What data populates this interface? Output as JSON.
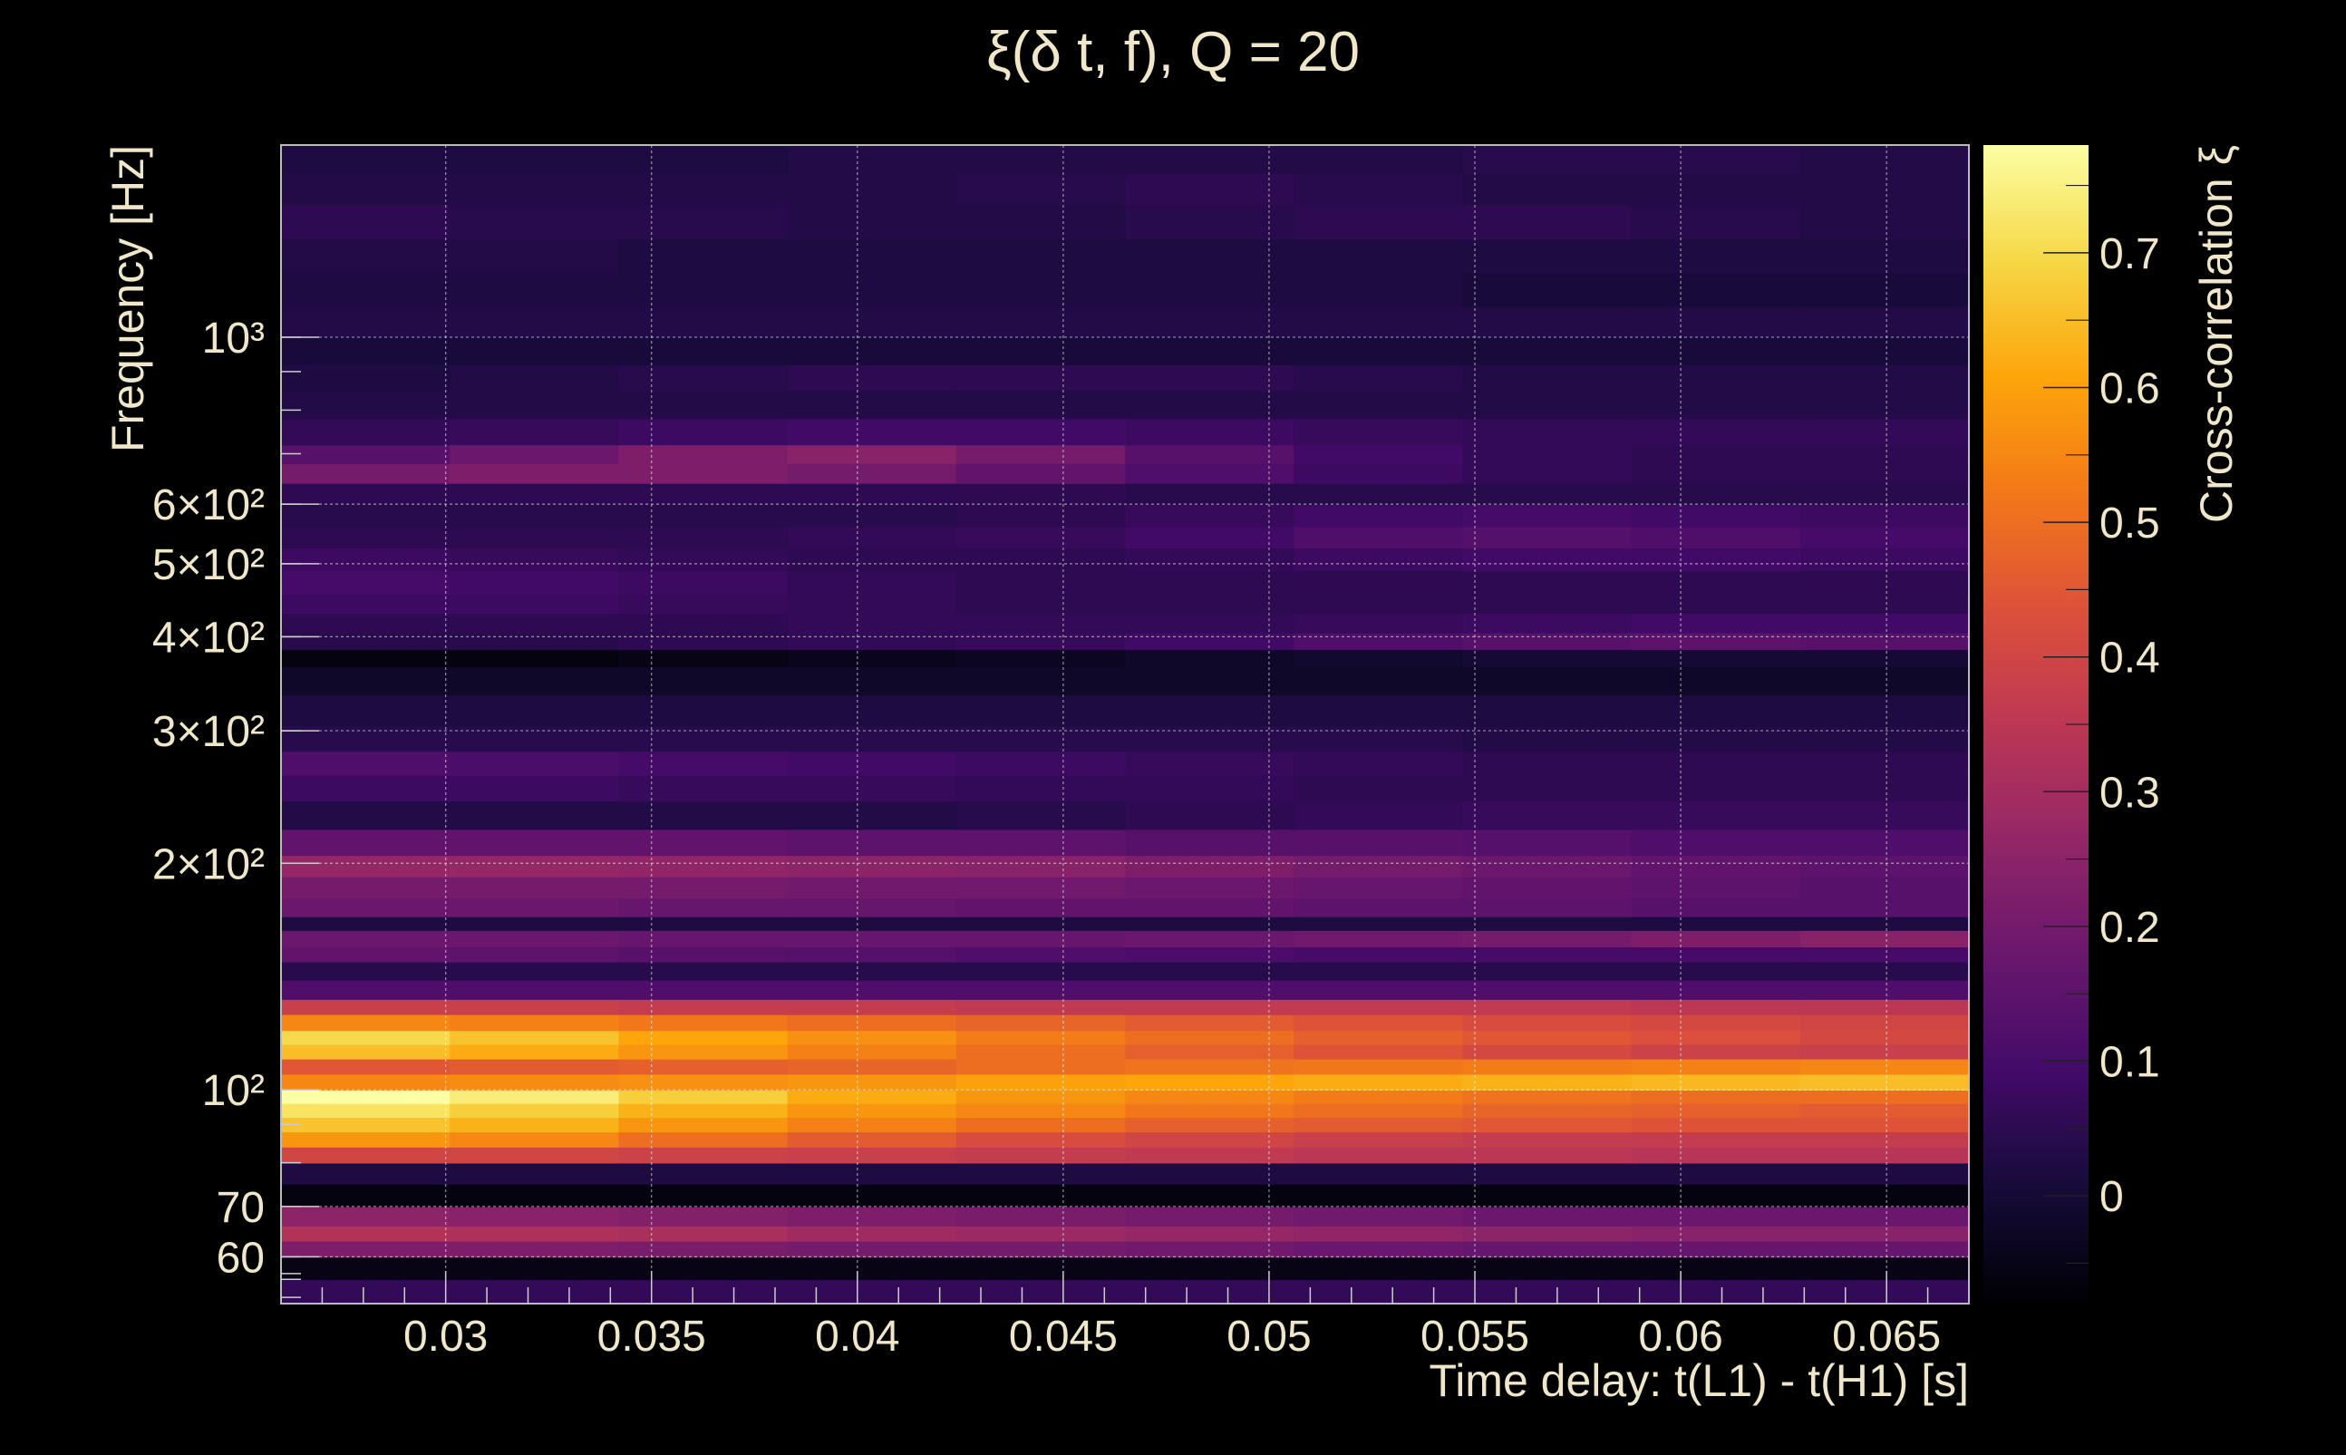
{
  "chart_data": {
    "type": "heatmap",
    "title": "ξ(δ t, f), Q = 20",
    "xlabel": "Time delay: t(L1) - t(H1) [s]",
    "ylabel": "Frequency [Hz]",
    "colorbar_label": "Cross-correlation ξ",
    "xlim": [
      0.026,
      0.067
    ],
    "ylim": [
      52,
      1800
    ],
    "y_scale": "log",
    "zlim": [
      -0.08,
      0.78
    ],
    "grid": true,
    "colormap": "inferno",
    "x_ticks": [
      {
        "value": 0.03,
        "label": "0.03"
      },
      {
        "value": 0.035,
        "label": "0.035"
      },
      {
        "value": 0.04,
        "label": "0.04"
      },
      {
        "value": 0.045,
        "label": "0.045"
      },
      {
        "value": 0.05,
        "label": "0.05"
      },
      {
        "value": 0.055,
        "label": "0.055"
      },
      {
        "value": 0.06,
        "label": "0.06"
      },
      {
        "value": 0.065,
        "label": "0.065"
      }
    ],
    "y_ticks": [
      {
        "value": 60,
        "label": "60"
      },
      {
        "value": 70,
        "label": "70"
      },
      {
        "value": 100,
        "label": "10²"
      },
      {
        "value": 200,
        "label": "2×10²"
      },
      {
        "value": 300,
        "label": "3×10²"
      },
      {
        "value": 400,
        "label": "4×10²"
      },
      {
        "value": 500,
        "label": "5×10²"
      },
      {
        "value": 600,
        "label": "6×10²"
      },
      {
        "value": 1000,
        "label": "10³"
      }
    ],
    "colorbar_ticks": [
      {
        "value": 0,
        "label": "0"
      },
      {
        "value": 0.1,
        "label": "0.1"
      },
      {
        "value": 0.2,
        "label": "0.2"
      },
      {
        "value": 0.3,
        "label": "0.3"
      },
      {
        "value": 0.4,
        "label": "0.4"
      },
      {
        "value": 0.5,
        "label": "0.5"
      },
      {
        "value": 0.6,
        "label": "0.6"
      },
      {
        "value": 0.7,
        "label": "0.7"
      }
    ],
    "x_bins": [
      0.026,
      0.0301,
      0.0342,
      0.0383,
      0.0424,
      0.0465,
      0.0506,
      0.0547,
      0.0588,
      0.0629,
      0.067
    ],
    "bands": [
      {
        "f_low": 52,
        "f_high": 56,
        "values": [
          0.06,
          0.06,
          0.06,
          0.06,
          0.06,
          0.06,
          0.06,
          0.06,
          0.06,
          0.06
        ]
      },
      {
        "f_low": 56,
        "f_high": 60,
        "values": [
          -0.05,
          -0.05,
          -0.05,
          -0.05,
          -0.05,
          -0.05,
          -0.05,
          -0.05,
          -0.05,
          -0.05
        ]
      },
      {
        "f_low": 60,
        "f_high": 63,
        "values": [
          0.22,
          0.22,
          0.21,
          0.2,
          0.2,
          0.19,
          0.18,
          0.17,
          0.17,
          0.17
        ]
      },
      {
        "f_low": 63,
        "f_high": 66,
        "values": [
          0.33,
          0.32,
          0.31,
          0.29,
          0.28,
          0.27,
          0.26,
          0.25,
          0.24,
          0.24
        ]
      },
      {
        "f_low": 66,
        "f_high": 70,
        "values": [
          0.25,
          0.24,
          0.23,
          0.22,
          0.21,
          0.2,
          0.19,
          0.18,
          0.18,
          0.18
        ]
      },
      {
        "f_low": 70,
        "f_high": 75,
        "values": [
          -0.06,
          -0.06,
          -0.06,
          -0.06,
          -0.06,
          -0.06,
          -0.06,
          -0.06,
          -0.06,
          -0.06
        ]
      },
      {
        "f_low": 75,
        "f_high": 80,
        "values": [
          0.02,
          0.02,
          0.02,
          0.02,
          0.02,
          0.02,
          0.02,
          0.02,
          0.02,
          0.02
        ]
      },
      {
        "f_low": 80,
        "f_high": 84,
        "values": [
          0.4,
          0.4,
          0.39,
          0.38,
          0.37,
          0.36,
          0.35,
          0.35,
          0.34,
          0.34
        ]
      },
      {
        "f_low": 84,
        "f_high": 88,
        "values": [
          0.58,
          0.55,
          0.5,
          0.46,
          0.42,
          0.4,
          0.38,
          0.37,
          0.37,
          0.37
        ]
      },
      {
        "f_low": 88,
        "f_high": 92,
        "values": [
          0.66,
          0.63,
          0.58,
          0.54,
          0.5,
          0.47,
          0.46,
          0.45,
          0.44,
          0.44
        ]
      },
      {
        "f_low": 92,
        "f_high": 96,
        "values": [
          0.72,
          0.68,
          0.63,
          0.58,
          0.55,
          0.52,
          0.5,
          0.48,
          0.47,
          0.46
        ]
      },
      {
        "f_low": 96,
        "f_high": 100,
        "values": [
          0.78,
          0.74,
          0.68,
          0.62,
          0.58,
          0.55,
          0.53,
          0.51,
          0.5,
          0.5
        ]
      },
      {
        "f_low": 100,
        "f_high": 105,
        "values": [
          0.55,
          0.56,
          0.57,
          0.58,
          0.6,
          0.61,
          0.62,
          0.63,
          0.64,
          0.65
        ]
      },
      {
        "f_low": 105,
        "f_high": 110,
        "values": [
          0.45,
          0.46,
          0.47,
          0.48,
          0.5,
          0.51,
          0.52,
          0.53,
          0.54,
          0.55
        ]
      },
      {
        "f_low": 110,
        "f_high": 115,
        "values": [
          0.65,
          0.62,
          0.58,
          0.54,
          0.5,
          0.47,
          0.44,
          0.41,
          0.39,
          0.38
        ]
      },
      {
        "f_low": 115,
        "f_high": 120,
        "values": [
          0.7,
          0.66,
          0.61,
          0.57,
          0.53,
          0.5,
          0.47,
          0.45,
          0.43,
          0.41
        ]
      },
      {
        "f_low": 120,
        "f_high": 126,
        "values": [
          0.55,
          0.54,
          0.52,
          0.5,
          0.48,
          0.46,
          0.44,
          0.42,
          0.41,
          0.4
        ]
      },
      {
        "f_low": 126,
        "f_high": 132,
        "values": [
          0.38,
          0.38,
          0.37,
          0.37,
          0.36,
          0.36,
          0.36,
          0.36,
          0.35,
          0.35
        ]
      },
      {
        "f_low": 132,
        "f_high": 140,
        "values": [
          0.12,
          0.12,
          0.12,
          0.12,
          0.12,
          0.12,
          0.12,
          0.12,
          0.12,
          0.12
        ]
      },
      {
        "f_low": 140,
        "f_high": 148,
        "values": [
          0.04,
          0.04,
          0.04,
          0.04,
          0.04,
          0.04,
          0.04,
          0.04,
          0.04,
          0.04
        ]
      },
      {
        "f_low": 148,
        "f_high": 155,
        "values": [
          0.16,
          0.15,
          0.14,
          0.13,
          0.12,
          0.11,
          0.1,
          0.1,
          0.1,
          0.1
        ]
      },
      {
        "f_low": 155,
        "f_high": 163,
        "values": [
          0.18,
          0.18,
          0.17,
          0.17,
          0.17,
          0.18,
          0.19,
          0.2,
          0.22,
          0.24
        ]
      },
      {
        "f_low": 163,
        "f_high": 170,
        "values": [
          0.02,
          0.02,
          0.02,
          0.02,
          0.02,
          0.02,
          0.02,
          0.02,
          0.02,
          0.02
        ]
      },
      {
        "f_low": 170,
        "f_high": 180,
        "values": [
          0.18,
          0.18,
          0.17,
          0.17,
          0.16,
          0.16,
          0.15,
          0.15,
          0.14,
          0.14
        ]
      },
      {
        "f_low": 180,
        "f_high": 192,
        "values": [
          0.2,
          0.2,
          0.2,
          0.19,
          0.19,
          0.18,
          0.17,
          0.16,
          0.15,
          0.14
        ]
      },
      {
        "f_low": 192,
        "f_high": 205,
        "values": [
          0.27,
          0.27,
          0.26,
          0.25,
          0.24,
          0.22,
          0.2,
          0.18,
          0.16,
          0.15
        ]
      },
      {
        "f_low": 205,
        "f_high": 222,
        "values": [
          0.16,
          0.16,
          0.16,
          0.15,
          0.15,
          0.14,
          0.14,
          0.13,
          0.12,
          0.12
        ]
      },
      {
        "f_low": 222,
        "f_high": 242,
        "values": [
          0.03,
          0.03,
          0.03,
          0.03,
          0.04,
          0.05,
          0.06,
          0.07,
          0.07,
          0.07
        ]
      },
      {
        "f_low": 242,
        "f_high": 262,
        "values": [
          0.08,
          0.08,
          0.07,
          0.07,
          0.06,
          0.06,
          0.05,
          0.05,
          0.05,
          0.05
        ]
      },
      {
        "f_low": 262,
        "f_high": 282,
        "values": [
          0.12,
          0.11,
          0.1,
          0.09,
          0.08,
          0.07,
          0.06,
          0.05,
          0.05,
          0.05
        ]
      },
      {
        "f_low": 282,
        "f_high": 305,
        "values": [
          0.04,
          0.04,
          0.04,
          0.04,
          0.04,
          0.04,
          0.04,
          0.03,
          0.03,
          0.03
        ]
      },
      {
        "f_low": 305,
        "f_high": 335,
        "values": [
          0.02,
          0.02,
          0.02,
          0.02,
          0.02,
          0.02,
          0.02,
          0.02,
          0.02,
          0.02
        ]
      },
      {
        "f_low": 335,
        "f_high": 365,
        "values": [
          -0.02,
          -0.02,
          -0.02,
          -0.02,
          -0.02,
          -0.02,
          -0.02,
          -0.02,
          -0.02,
          -0.02
        ]
      },
      {
        "f_low": 365,
        "f_high": 385,
        "values": [
          -0.06,
          -0.06,
          -0.05,
          -0.04,
          -0.03,
          -0.02,
          -0.01,
          0.0,
          0.0,
          0.0
        ]
      },
      {
        "f_low": 385,
        "f_high": 405,
        "values": [
          0.04,
          0.04,
          0.05,
          0.06,
          0.07,
          0.09,
          0.12,
          0.14,
          0.15,
          0.14
        ]
      },
      {
        "f_low": 405,
        "f_high": 430,
        "values": [
          0.05,
          0.05,
          0.05,
          0.06,
          0.06,
          0.06,
          0.07,
          0.08,
          0.09,
          0.09
        ]
      },
      {
        "f_low": 430,
        "f_high": 455,
        "values": [
          0.08,
          0.08,
          0.07,
          0.06,
          0.05,
          0.05,
          0.05,
          0.05,
          0.05,
          0.05
        ]
      },
      {
        "f_low": 455,
        "f_high": 490,
        "values": [
          0.1,
          0.09,
          0.08,
          0.06,
          0.05,
          0.05,
          0.05,
          0.05,
          0.05,
          0.05
        ]
      },
      {
        "f_low": 490,
        "f_high": 525,
        "values": [
          0.08,
          0.07,
          0.06,
          0.05,
          0.05,
          0.06,
          0.08,
          0.09,
          0.09,
          0.08
        ]
      },
      {
        "f_low": 525,
        "f_high": 560,
        "values": [
          0.05,
          0.05,
          0.05,
          0.06,
          0.07,
          0.09,
          0.12,
          0.13,
          0.12,
          0.1
        ]
      },
      {
        "f_low": 560,
        "f_high": 600,
        "values": [
          0.04,
          0.04,
          0.04,
          0.04,
          0.05,
          0.07,
          0.09,
          0.1,
          0.09,
          0.08
        ]
      },
      {
        "f_low": 600,
        "f_high": 640,
        "values": [
          0.05,
          0.05,
          0.05,
          0.05,
          0.05,
          0.04,
          0.04,
          0.04,
          0.04,
          0.04
        ]
      },
      {
        "f_low": 640,
        "f_high": 680,
        "values": [
          0.2,
          0.22,
          0.22,
          0.2,
          0.16,
          0.12,
          0.08,
          0.06,
          0.05,
          0.05
        ]
      },
      {
        "f_low": 680,
        "f_high": 720,
        "values": [
          0.14,
          0.18,
          0.22,
          0.24,
          0.2,
          0.14,
          0.09,
          0.06,
          0.05,
          0.05
        ]
      },
      {
        "f_low": 720,
        "f_high": 780,
        "values": [
          0.06,
          0.07,
          0.08,
          0.09,
          0.09,
          0.08,
          0.07,
          0.06,
          0.06,
          0.06
        ]
      },
      {
        "f_low": 780,
        "f_high": 850,
        "values": [
          0.03,
          0.03,
          0.03,
          0.03,
          0.03,
          0.03,
          0.03,
          0.03,
          0.03,
          0.03
        ]
      },
      {
        "f_low": 850,
        "f_high": 920,
        "values": [
          0.02,
          0.03,
          0.04,
          0.05,
          0.05,
          0.05,
          0.04,
          0.03,
          0.03,
          0.03
        ]
      },
      {
        "f_low": 920,
        "f_high": 1000,
        "values": [
          0.01,
          0.01,
          0.01,
          0.01,
          0.01,
          0.01,
          0.01,
          0.01,
          0.01,
          0.01
        ]
      },
      {
        "f_low": 1000,
        "f_high": 1100,
        "values": [
          0.03,
          0.03,
          0.03,
          0.03,
          0.03,
          0.03,
          0.03,
          0.03,
          0.03,
          0.03
        ]
      },
      {
        "f_low": 1100,
        "f_high": 1220,
        "values": [
          0.02,
          0.02,
          0.02,
          0.02,
          0.02,
          0.02,
          0.02,
          0.01,
          0.01,
          0.01
        ]
      },
      {
        "f_low": 1220,
        "f_high": 1350,
        "values": [
          0.03,
          0.03,
          0.02,
          0.02,
          0.02,
          0.02,
          0.02,
          0.02,
          0.02,
          0.02
        ]
      },
      {
        "f_low": 1350,
        "f_high": 1500,
        "values": [
          0.05,
          0.04,
          0.04,
          0.03,
          0.03,
          0.04,
          0.05,
          0.05,
          0.04,
          0.03
        ]
      },
      {
        "f_low": 1500,
        "f_high": 1650,
        "values": [
          0.03,
          0.03,
          0.03,
          0.03,
          0.04,
          0.05,
          0.04,
          0.03,
          0.03,
          0.03
        ]
      },
      {
        "f_low": 1650,
        "f_high": 1800,
        "values": [
          0.02,
          0.02,
          0.02,
          0.03,
          0.03,
          0.03,
          0.03,
          0.04,
          0.04,
          0.03
        ]
      }
    ]
  }
}
